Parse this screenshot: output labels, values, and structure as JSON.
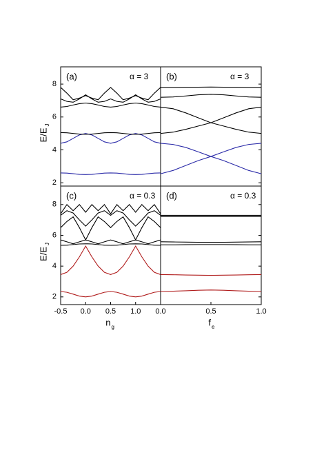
{
  "chart_data": [
    {
      "type": "line",
      "panel_label": "(a)",
      "annotation": "α = 3",
      "ylabel": "E/E",
      "ylabel_sub": "J",
      "x": [
        -0.5,
        -0.375,
        -0.25,
        -0.125,
        0,
        0.125,
        0.25,
        0.375,
        0.5,
        0.625,
        0.75,
        0.875,
        1,
        1.125,
        1.25,
        1.375,
        1.5
      ],
      "xlim": [
        -0.5,
        1.5
      ],
      "ylim": [
        1.8,
        9.05
      ],
      "yticks": [
        2,
        4,
        6,
        8
      ],
      "series": [
        {
          "color": "#2a2aa8",
          "values": [
            2.6,
            2.59,
            2.55,
            2.51,
            2.5,
            2.51,
            2.55,
            2.59,
            2.6,
            2.59,
            2.55,
            2.51,
            2.5,
            2.51,
            2.55,
            2.59,
            2.6
          ]
        },
        {
          "color": "#2a2aa8",
          "values": [
            4.4,
            4.49,
            4.7,
            4.91,
            5.0,
            4.91,
            4.7,
            4.49,
            4.4,
            4.49,
            4.7,
            4.91,
            5.0,
            4.91,
            4.7,
            4.49,
            4.4
          ]
        },
        {
          "color": "#000000",
          "values": [
            5.05,
            5.04,
            5.0,
            4.96,
            4.95,
            4.96,
            5.0,
            5.04,
            5.05,
            5.04,
            5.0,
            4.96,
            4.95,
            4.96,
            5.0,
            5.04,
            5.05
          ]
        },
        {
          "color": "#000000",
          "values": [
            6.6,
            6.64,
            6.73,
            6.81,
            6.85,
            6.81,
            6.73,
            6.64,
            6.6,
            6.64,
            6.73,
            6.81,
            6.85,
            6.81,
            6.73,
            6.64,
            6.6
          ]
        },
        {
          "color": "#000000",
          "values": [
            7.1,
            6.95,
            6.9,
            7.1,
            7.35,
            7.1,
            6.9,
            6.95,
            7.1,
            6.95,
            6.9,
            7.1,
            7.35,
            7.1,
            6.9,
            6.95,
            7.1
          ]
        },
        {
          "color": "#000000",
          "values": [
            7.8,
            7.45,
            7.05,
            7.15,
            7.3,
            7.15,
            7.05,
            7.45,
            7.8,
            7.45,
            7.05,
            7.15,
            7.3,
            7.15,
            7.05,
            7.45,
            7.8
          ]
        }
      ]
    },
    {
      "type": "line",
      "panel_label": "(b)",
      "annotation": "α = 3",
      "x": [
        0,
        0.125,
        0.25,
        0.375,
        0.5,
        0.625,
        0.75,
        0.875,
        1
      ],
      "xlim": [
        0,
        1
      ],
      "ylim": [
        1.8,
        9.05
      ],
      "series": [
        {
          "color": "#2a2aa8",
          "values": [
            2.55,
            2.75,
            3.05,
            3.35,
            3.6,
            3.88,
            4.15,
            4.33,
            4.4
          ]
        },
        {
          "color": "#2a2aa8",
          "values": [
            4.4,
            4.33,
            4.15,
            3.88,
            3.6,
            3.35,
            3.05,
            2.75,
            2.55
          ]
        },
        {
          "color": "#000000",
          "values": [
            5.0,
            5.08,
            5.25,
            5.45,
            5.65,
            5.95,
            6.25,
            6.5,
            6.6
          ]
        },
        {
          "color": "#000000",
          "values": [
            6.6,
            6.5,
            6.25,
            5.95,
            5.65,
            5.45,
            5.25,
            5.08,
            5.0
          ]
        },
        {
          "color": "#000000",
          "values": [
            7.2,
            7.22,
            7.28,
            7.35,
            7.38,
            7.35,
            7.28,
            7.22,
            7.2
          ]
        },
        {
          "color": "#000000",
          "values": [
            7.8,
            7.8,
            7.81,
            7.81,
            7.82,
            7.81,
            7.81,
            7.8,
            7.8
          ]
        }
      ]
    },
    {
      "type": "line",
      "panel_label": "(c)",
      "annotation": "α = 0.3",
      "ylabel": "E/E",
      "ylabel_sub": "J",
      "xlabel": "n",
      "xlabel_sub": "g",
      "x": [
        -0.5,
        -0.375,
        -0.25,
        -0.125,
        0,
        0.125,
        0.25,
        0.375,
        0.5,
        0.625,
        0.75,
        0.875,
        1,
        1.125,
        1.25,
        1.375,
        1.5
      ],
      "xlim": [
        -0.5,
        1.5
      ],
      "ylim": [
        1.5,
        9.2
      ],
      "yticks": [
        2,
        4,
        6,
        8
      ],
      "xticks": [
        -0.5,
        {
          "value": 0,
          "label": "0.0"
        },
        0.5,
        {
          "value": 1,
          "label": "1.0"
        }
      ],
      "series": [
        {
          "color": "#b01c1c",
          "values": [
            2.35,
            2.3,
            2.18,
            2.05,
            2.0,
            2.05,
            2.18,
            2.3,
            2.35,
            2.3,
            2.18,
            2.05,
            2.0,
            2.05,
            2.18,
            2.3,
            2.35
          ]
        },
        {
          "color": "#b01c1c",
          "values": [
            3.45,
            3.6,
            4.0,
            4.6,
            5.3,
            4.6,
            4.0,
            3.6,
            3.45,
            3.6,
            4.0,
            4.6,
            5.3,
            4.6,
            4.0,
            3.6,
            3.45
          ]
        },
        {
          "color": "#000000",
          "values": [
            5.35,
            5.36,
            5.4,
            5.44,
            5.45,
            5.44,
            5.4,
            5.36,
            5.35,
            5.36,
            5.4,
            5.44,
            5.45,
            5.44,
            5.4,
            5.36,
            5.35
          ]
        },
        {
          "color": "#000000",
          "values": [
            5.7,
            5.58,
            5.45,
            5.58,
            5.7,
            5.58,
            5.45,
            5.58,
            5.7,
            5.58,
            5.45,
            5.58,
            5.7,
            5.58,
            5.45,
            5.58,
            5.7
          ]
        },
        {
          "color": "#000000",
          "values": [
            6.5,
            6.9,
            7.2,
            6.5,
            5.7,
            6.5,
            7.2,
            6.9,
            6.5,
            6.9,
            7.2,
            6.5,
            5.7,
            6.5,
            7.2,
            6.9,
            6.5
          ]
        },
        {
          "color": "#000000",
          "values": [
            7.3,
            7.6,
            7.45,
            7.0,
            6.6,
            7.0,
            7.45,
            7.6,
            7.3,
            7.6,
            7.45,
            7.0,
            6.6,
            7.0,
            7.45,
            7.6,
            7.3
          ]
        },
        {
          "color": "#000000",
          "values": [
            7.4,
            8.0,
            7.6,
            8.0,
            7.5,
            8.0,
            7.6,
            8.0,
            7.4,
            8.0,
            7.6,
            8.0,
            7.5,
            8.0,
            7.6,
            8.0,
            7.4
          ]
        }
      ]
    },
    {
      "type": "line",
      "panel_label": "(d)",
      "annotation": "α = 0.3",
      "xlabel": "f",
      "xlabel_sub": "e",
      "x": [
        0,
        0.125,
        0.25,
        0.375,
        0.5,
        0.625,
        0.75,
        0.875,
        1
      ],
      "xlim": [
        0,
        1
      ],
      "ylim": [
        1.5,
        9.2
      ],
      "xticks": [
        {
          "value": 0,
          "label": "0.0"
        },
        0.5,
        {
          "value": 1,
          "label": "1.0"
        }
      ],
      "series": [
        {
          "color": "#b01c1c",
          "values": [
            2.35,
            2.37,
            2.4,
            2.43,
            2.45,
            2.43,
            2.4,
            2.37,
            2.35
          ]
        },
        {
          "color": "#b01c1c",
          "values": [
            3.45,
            3.44,
            3.42,
            3.41,
            3.4,
            3.41,
            3.42,
            3.44,
            3.45
          ]
        },
        {
          "color": "#000000",
          "values": [
            5.38,
            5.38,
            5.39,
            5.4,
            5.4,
            5.4,
            5.39,
            5.38,
            5.38
          ]
        },
        {
          "color": "#000000",
          "values": [
            5.58,
            5.57,
            5.56,
            5.55,
            5.55,
            5.55,
            5.56,
            5.57,
            5.58
          ]
        },
        {
          "color": "#000000",
          "values": [
            7.22,
            7.22,
            7.22,
            7.22,
            7.22,
            7.22,
            7.22,
            7.22,
            7.22
          ]
        },
        {
          "color": "#000000",
          "values": [
            7.3,
            7.3,
            7.3,
            7.3,
            7.3,
            7.3,
            7.3,
            7.3,
            7.3
          ]
        }
      ]
    }
  ]
}
